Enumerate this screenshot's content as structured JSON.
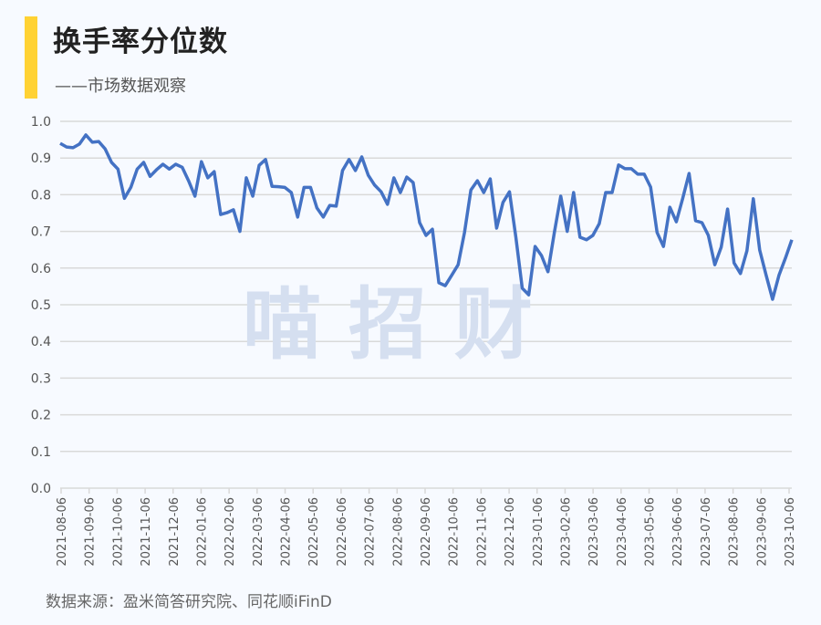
{
  "header": {
    "title": "换手率分位数",
    "subtitle": "——市场数据观察"
  },
  "watermark": "喵 招 财",
  "footer": {
    "source": "数据来源：盈米简答研究院、同花顺iFinD"
  },
  "colors": {
    "line": "#4472c4",
    "accent_bar": "#ffd233",
    "grid": "#d9d9d9",
    "watermark": "#d5dff0"
  },
  "chart_data": {
    "type": "line",
    "title": "换手率分位数",
    "ylim": [
      0,
      1.0
    ],
    "yticks": [
      "0.0",
      "0.1",
      "0.2",
      "0.3",
      "0.4",
      "0.5",
      "0.6",
      "0.7",
      "0.8",
      "0.9",
      "1.0"
    ],
    "xticks": [
      "2021-08-06",
      "2021-09-06",
      "2021-10-06",
      "2021-11-06",
      "2021-12-06",
      "2022-01-06",
      "2022-02-06",
      "2022-03-06",
      "2022-04-06",
      "2022-05-06",
      "2022-06-06",
      "2022-07-06",
      "2022-08-06",
      "2022-09-06",
      "2022-10-06",
      "2022-11-06",
      "2022-12-06",
      "2023-01-06",
      "2023-02-06",
      "2023-03-06",
      "2023-04-06",
      "2023-05-06",
      "2023-06-06",
      "2023-07-06",
      "2023-08-06",
      "2023-09-06",
      "2023-10-06"
    ],
    "grid": true,
    "values": [
      0.94,
      0.93,
      0.928,
      0.938,
      0.963,
      0.943,
      0.945,
      0.925,
      0.888,
      0.87,
      0.79,
      0.82,
      0.87,
      0.888,
      0.85,
      0.868,
      0.883,
      0.87,
      0.883,
      0.875,
      0.838,
      0.796,
      0.89,
      0.846,
      0.863,
      0.746,
      0.751,
      0.759,
      0.7,
      0.846,
      0.796,
      0.88,
      0.896,
      0.823,
      0.822,
      0.82,
      0.806,
      0.739,
      0.82,
      0.82,
      0.764,
      0.739,
      0.771,
      0.769,
      0.866,
      0.896,
      0.866,
      0.903,
      0.853,
      0.826,
      0.808,
      0.774,
      0.846,
      0.806,
      0.848,
      0.833,
      0.724,
      0.689,
      0.706,
      0.56,
      0.552,
      0.58,
      0.609,
      0.697,
      0.813,
      0.838,
      0.806,
      0.843,
      0.709,
      0.779,
      0.808,
      0.684,
      0.545,
      0.527,
      0.659,
      0.634,
      0.59,
      0.697,
      0.796,
      0.7,
      0.806,
      0.684,
      0.677,
      0.689,
      0.721,
      0.806,
      0.806,
      0.881,
      0.871,
      0.871,
      0.856,
      0.856,
      0.821,
      0.697,
      0.659,
      0.766,
      0.726,
      0.79,
      0.858,
      0.729,
      0.724,
      0.689,
      0.609,
      0.657,
      0.761,
      0.614,
      0.585,
      0.647,
      0.789,
      0.649,
      0.58,
      0.515,
      0.58,
      0.627,
      0.677
    ]
  }
}
